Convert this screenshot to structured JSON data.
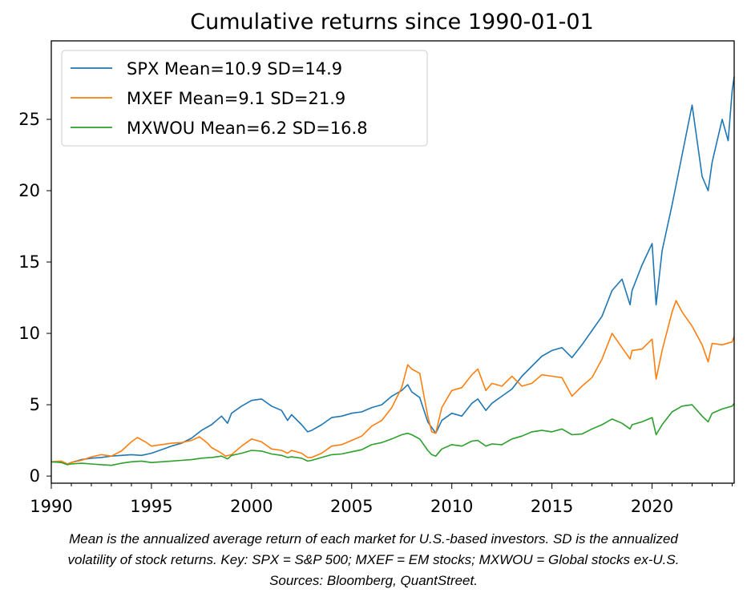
{
  "chart_data": {
    "type": "line",
    "title": "Cumulative returns since 1990-01-01",
    "xlabel": "",
    "ylabel": "",
    "xlim": [
      1990.0,
      2024.1
    ],
    "ylim": [
      -0.5,
      30.5
    ],
    "xticks": [
      1990,
      1995,
      2000,
      2005,
      2010,
      2015,
      2020
    ],
    "yticks": [
      0,
      5,
      10,
      15,
      20,
      25
    ],
    "grid": false,
    "legend_position": "top-left",
    "series": [
      {
        "name": "SPX Mean=10.9 SD=14.9",
        "color": "#1f77b4",
        "points": [
          [
            1990.0,
            1.0
          ],
          [
            1990.5,
            1.0
          ],
          [
            1990.8,
            0.85
          ],
          [
            1991.0,
            0.95
          ],
          [
            1991.5,
            1.15
          ],
          [
            1992.0,
            1.25
          ],
          [
            1992.5,
            1.3
          ],
          [
            1993.0,
            1.4
          ],
          [
            1993.5,
            1.45
          ],
          [
            1994.0,
            1.5
          ],
          [
            1994.5,
            1.45
          ],
          [
            1995.0,
            1.6
          ],
          [
            1995.5,
            1.85
          ],
          [
            1996.0,
            2.1
          ],
          [
            1996.5,
            2.3
          ],
          [
            1997.0,
            2.65
          ],
          [
            1997.5,
            3.2
          ],
          [
            1998.0,
            3.6
          ],
          [
            1998.5,
            4.2
          ],
          [
            1998.8,
            3.7
          ],
          [
            1999.0,
            4.4
          ],
          [
            1999.5,
            4.9
          ],
          [
            2000.0,
            5.3
          ],
          [
            2000.5,
            5.4
          ],
          [
            2001.0,
            4.9
          ],
          [
            2001.5,
            4.6
          ],
          [
            2001.8,
            3.9
          ],
          [
            2002.0,
            4.3
          ],
          [
            2002.5,
            3.6
          ],
          [
            2002.8,
            3.1
          ],
          [
            2003.0,
            3.2
          ],
          [
            2003.5,
            3.6
          ],
          [
            2004.0,
            4.1
          ],
          [
            2004.5,
            4.2
          ],
          [
            2005.0,
            4.4
          ],
          [
            2005.5,
            4.5
          ],
          [
            2006.0,
            4.8
          ],
          [
            2006.5,
            5.0
          ],
          [
            2007.0,
            5.6
          ],
          [
            2007.5,
            6.0
          ],
          [
            2007.8,
            6.4
          ],
          [
            2008.0,
            5.9
          ],
          [
            2008.4,
            5.5
          ],
          [
            2008.8,
            3.8
          ],
          [
            2009.0,
            3.4
          ],
          [
            2009.2,
            3.0
          ],
          [
            2009.5,
            3.9
          ],
          [
            2010.0,
            4.4
          ],
          [
            2010.5,
            4.2
          ],
          [
            2011.0,
            5.1
          ],
          [
            2011.3,
            5.4
          ],
          [
            2011.7,
            4.6
          ],
          [
            2012.0,
            5.1
          ],
          [
            2012.5,
            5.6
          ],
          [
            2013.0,
            6.1
          ],
          [
            2013.5,
            7.0
          ],
          [
            2014.0,
            7.7
          ],
          [
            2014.5,
            8.4
          ],
          [
            2015.0,
            8.8
          ],
          [
            2015.5,
            9.0
          ],
          [
            2016.0,
            8.3
          ],
          [
            2016.5,
            9.2
          ],
          [
            2017.0,
            10.2
          ],
          [
            2017.5,
            11.2
          ],
          [
            2018.0,
            13.0
          ],
          [
            2018.5,
            13.8
          ],
          [
            2018.9,
            12.0
          ],
          [
            2019.0,
            13.0
          ],
          [
            2019.5,
            14.8
          ],
          [
            2020.0,
            16.3
          ],
          [
            2020.2,
            12.0
          ],
          [
            2020.5,
            15.8
          ],
          [
            2021.0,
            19.0
          ],
          [
            2021.5,
            22.5
          ],
          [
            2022.0,
            26.0
          ],
          [
            2022.3,
            23.0
          ],
          [
            2022.5,
            21.0
          ],
          [
            2022.8,
            20.0
          ],
          [
            2023.0,
            22.0
          ],
          [
            2023.5,
            25.0
          ],
          [
            2023.8,
            23.5
          ],
          [
            2024.0,
            27.0
          ],
          [
            2024.1,
            28.0
          ]
        ]
      },
      {
        "name": "MXEF Mean=9.1 SD=21.9",
        "color": "#ff7f0e",
        "points": [
          [
            1990.0,
            1.0
          ],
          [
            1990.5,
            1.05
          ],
          [
            1990.8,
            0.85
          ],
          [
            1991.0,
            0.95
          ],
          [
            1991.5,
            1.1
          ],
          [
            1992.0,
            1.35
          ],
          [
            1992.5,
            1.5
          ],
          [
            1993.0,
            1.4
          ],
          [
            1993.5,
            1.75
          ],
          [
            1994.0,
            2.4
          ],
          [
            1994.3,
            2.7
          ],
          [
            1994.7,
            2.4
          ],
          [
            1995.0,
            2.1
          ],
          [
            1995.5,
            2.2
          ],
          [
            1996.0,
            2.3
          ],
          [
            1996.5,
            2.35
          ],
          [
            1997.0,
            2.5
          ],
          [
            1997.4,
            2.75
          ],
          [
            1997.8,
            2.3
          ],
          [
            1998.0,
            2.0
          ],
          [
            1998.5,
            1.6
          ],
          [
            1998.7,
            1.4
          ],
          [
            1999.0,
            1.5
          ],
          [
            1999.5,
            2.1
          ],
          [
            2000.0,
            2.6
          ],
          [
            2000.5,
            2.4
          ],
          [
            2001.0,
            1.9
          ],
          [
            2001.5,
            1.8
          ],
          [
            2001.8,
            1.6
          ],
          [
            2002.0,
            1.8
          ],
          [
            2002.5,
            1.6
          ],
          [
            2002.8,
            1.3
          ],
          [
            2003.0,
            1.3
          ],
          [
            2003.5,
            1.6
          ],
          [
            2004.0,
            2.1
          ],
          [
            2004.5,
            2.2
          ],
          [
            2005.0,
            2.5
          ],
          [
            2005.5,
            2.8
          ],
          [
            2006.0,
            3.5
          ],
          [
            2006.5,
            3.9
          ],
          [
            2007.0,
            4.8
          ],
          [
            2007.5,
            6.2
          ],
          [
            2007.8,
            7.8
          ],
          [
            2008.0,
            7.5
          ],
          [
            2008.4,
            7.2
          ],
          [
            2008.8,
            4.2
          ],
          [
            2009.0,
            3.1
          ],
          [
            2009.2,
            3.0
          ],
          [
            2009.5,
            4.8
          ],
          [
            2010.0,
            6.0
          ],
          [
            2010.5,
            6.2
          ],
          [
            2011.0,
            7.1
          ],
          [
            2011.3,
            7.5
          ],
          [
            2011.7,
            6.0
          ],
          [
            2012.0,
            6.5
          ],
          [
            2012.5,
            6.3
          ],
          [
            2013.0,
            7.0
          ],
          [
            2013.5,
            6.3
          ],
          [
            2014.0,
            6.5
          ],
          [
            2014.5,
            7.1
          ],
          [
            2015.0,
            7.0
          ],
          [
            2015.5,
            6.9
          ],
          [
            2016.0,
            5.6
          ],
          [
            2016.5,
            6.3
          ],
          [
            2017.0,
            6.9
          ],
          [
            2017.5,
            8.2
          ],
          [
            2018.0,
            10.0
          ],
          [
            2018.5,
            9.0
          ],
          [
            2018.9,
            8.2
          ],
          [
            2019.0,
            8.8
          ],
          [
            2019.5,
            8.9
          ],
          [
            2020.0,
            9.6
          ],
          [
            2020.2,
            6.8
          ],
          [
            2020.5,
            8.8
          ],
          [
            2021.0,
            11.5
          ],
          [
            2021.2,
            12.3
          ],
          [
            2021.5,
            11.5
          ],
          [
            2022.0,
            10.5
          ],
          [
            2022.5,
            9.2
          ],
          [
            2022.8,
            8.0
          ],
          [
            2023.0,
            9.3
          ],
          [
            2023.5,
            9.2
          ],
          [
            2024.0,
            9.4
          ],
          [
            2024.1,
            9.8
          ]
        ]
      },
      {
        "name": "MXWOU Mean=6.2 SD=16.8",
        "color": "#2ca02c",
        "points": [
          [
            1990.0,
            1.0
          ],
          [
            1990.5,
            0.95
          ],
          [
            1990.8,
            0.8
          ],
          [
            1991.0,
            0.85
          ],
          [
            1991.5,
            0.9
          ],
          [
            1992.0,
            0.85
          ],
          [
            1992.5,
            0.8
          ],
          [
            1993.0,
            0.75
          ],
          [
            1993.5,
            0.9
          ],
          [
            1994.0,
            1.0
          ],
          [
            1994.5,
            1.05
          ],
          [
            1995.0,
            0.95
          ],
          [
            1995.5,
            1.0
          ],
          [
            1996.0,
            1.05
          ],
          [
            1996.5,
            1.1
          ],
          [
            1997.0,
            1.15
          ],
          [
            1997.5,
            1.25
          ],
          [
            1998.0,
            1.3
          ],
          [
            1998.5,
            1.4
          ],
          [
            1998.8,
            1.2
          ],
          [
            1999.0,
            1.45
          ],
          [
            1999.5,
            1.6
          ],
          [
            2000.0,
            1.8
          ],
          [
            2000.5,
            1.75
          ],
          [
            2001.0,
            1.55
          ],
          [
            2001.5,
            1.45
          ],
          [
            2001.8,
            1.3
          ],
          [
            2002.0,
            1.35
          ],
          [
            2002.5,
            1.25
          ],
          [
            2002.8,
            1.05
          ],
          [
            2003.0,
            1.1
          ],
          [
            2003.5,
            1.3
          ],
          [
            2004.0,
            1.5
          ],
          [
            2004.5,
            1.55
          ],
          [
            2005.0,
            1.7
          ],
          [
            2005.5,
            1.85
          ],
          [
            2006.0,
            2.2
          ],
          [
            2006.5,
            2.35
          ],
          [
            2007.0,
            2.6
          ],
          [
            2007.5,
            2.9
          ],
          [
            2007.8,
            3.0
          ],
          [
            2008.0,
            2.9
          ],
          [
            2008.4,
            2.6
          ],
          [
            2008.8,
            1.8
          ],
          [
            2009.0,
            1.5
          ],
          [
            2009.2,
            1.4
          ],
          [
            2009.5,
            1.9
          ],
          [
            2010.0,
            2.2
          ],
          [
            2010.5,
            2.1
          ],
          [
            2011.0,
            2.45
          ],
          [
            2011.3,
            2.5
          ],
          [
            2011.7,
            2.1
          ],
          [
            2012.0,
            2.25
          ],
          [
            2012.5,
            2.2
          ],
          [
            2013.0,
            2.6
          ],
          [
            2013.5,
            2.8
          ],
          [
            2014.0,
            3.1
          ],
          [
            2014.5,
            3.2
          ],
          [
            2015.0,
            3.1
          ],
          [
            2015.5,
            3.3
          ],
          [
            2016.0,
            2.9
          ],
          [
            2016.5,
            2.95
          ],
          [
            2017.0,
            3.3
          ],
          [
            2017.5,
            3.6
          ],
          [
            2018.0,
            4.0
          ],
          [
            2018.5,
            3.7
          ],
          [
            2018.9,
            3.3
          ],
          [
            2019.0,
            3.6
          ],
          [
            2019.5,
            3.8
          ],
          [
            2020.0,
            4.1
          ],
          [
            2020.2,
            2.9
          ],
          [
            2020.5,
            3.6
          ],
          [
            2021.0,
            4.5
          ],
          [
            2021.5,
            4.9
          ],
          [
            2022.0,
            5.0
          ],
          [
            2022.5,
            4.2
          ],
          [
            2022.8,
            3.8
          ],
          [
            2023.0,
            4.4
          ],
          [
            2023.5,
            4.7
          ],
          [
            2024.0,
            4.9
          ],
          [
            2024.1,
            5.1
          ]
        ]
      }
    ]
  },
  "caption": {
    "line1": "Mean is the annualized average return of each market for U.S.-based investors. SD is the annualized",
    "line2": "volatility of stock returns. Key: SPX = S&P 500; MXEF = EM stocks; MXWOU = Global stocks ex-U.S.",
    "line3": "Sources: Bloomberg, QuantStreet."
  }
}
